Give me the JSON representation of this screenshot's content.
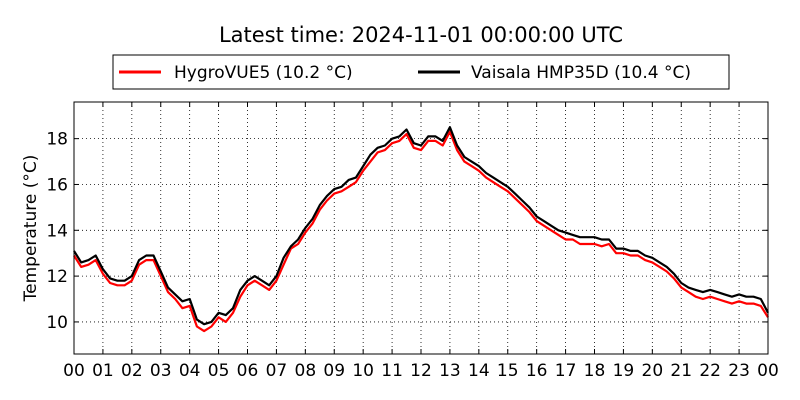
{
  "chart_data": {
    "type": "line",
    "title": "Latest time: 2024-11-01 00:00:00 UTC",
    "xlabel": "",
    "ylabel": "Temperature (°C)",
    "x_unit": "hour",
    "xlim": [
      0,
      24
    ],
    "ylim": [
      8.6,
      19.6
    ],
    "x_ticks": [
      0,
      1,
      2,
      3,
      4,
      5,
      6,
      7,
      8,
      9,
      10,
      11,
      12,
      13,
      14,
      15,
      16,
      17,
      18,
      19,
      20,
      21,
      22,
      23,
      24
    ],
    "x_tick_labels": [
      "00",
      "01",
      "02",
      "03",
      "04",
      "05",
      "06",
      "07",
      "08",
      "09",
      "10",
      "11",
      "12",
      "13",
      "14",
      "15",
      "16",
      "17",
      "18",
      "19",
      "20",
      "21",
      "22",
      "23",
      "00"
    ],
    "y_ticks": [
      10,
      12,
      14,
      16,
      18
    ],
    "y_tick_labels": [
      "10",
      "12",
      "14",
      "16",
      "18"
    ],
    "grid": true,
    "legend_position": "top",
    "x": [
      0,
      0.25,
      0.5,
      0.75,
      1,
      1.25,
      1.5,
      1.75,
      2,
      2.25,
      2.5,
      2.75,
      3,
      3.25,
      3.5,
      3.75,
      4,
      4.25,
      4.5,
      4.75,
      5,
      5.25,
      5.5,
      5.75,
      6,
      6.25,
      6.5,
      6.75,
      7,
      7.25,
      7.5,
      7.75,
      8,
      8.25,
      8.5,
      8.75,
      9,
      9.25,
      9.5,
      9.75,
      10,
      10.25,
      10.5,
      10.75,
      11,
      11.25,
      11.5,
      11.75,
      12,
      12.25,
      12.5,
      12.75,
      13,
      13.25,
      13.5,
      13.75,
      14,
      14.25,
      14.5,
      14.75,
      15,
      15.25,
      15.5,
      15.75,
      16,
      16.25,
      16.5,
      16.75,
      17,
      17.25,
      17.5,
      17.75,
      18,
      18.25,
      18.5,
      18.75,
      19,
      19.25,
      19.5,
      19.75,
      20,
      20.25,
      20.5,
      20.75,
      21,
      21.25,
      21.5,
      21.75,
      22,
      22.25,
      22.5,
      22.75,
      23,
      23.25,
      23.5,
      23.75,
      24
    ],
    "series": [
      {
        "name": "HygroVUE5 (10.2 °C)",
        "color": "#ff0000",
        "values": [
          12.9,
          12.4,
          12.5,
          12.7,
          12.1,
          11.7,
          11.6,
          11.6,
          11.8,
          12.5,
          12.7,
          12.7,
          12.0,
          11.3,
          11.0,
          10.6,
          10.7,
          9.8,
          9.6,
          9.8,
          10.2,
          10.0,
          10.4,
          11.1,
          11.6,
          11.8,
          11.6,
          11.4,
          11.8,
          12.5,
          13.2,
          13.4,
          13.9,
          14.3,
          14.9,
          15.3,
          15.6,
          15.7,
          15.9,
          16.1,
          16.6,
          17.0,
          17.4,
          17.5,
          17.8,
          17.9,
          18.2,
          17.6,
          17.5,
          17.9,
          17.9,
          17.7,
          18.3,
          17.5,
          17.0,
          16.8,
          16.6,
          16.3,
          16.1,
          15.9,
          15.7,
          15.4,
          15.1,
          14.8,
          14.4,
          14.2,
          14.0,
          13.8,
          13.6,
          13.6,
          13.4,
          13.4,
          13.4,
          13.3,
          13.4,
          13.0,
          13.0,
          12.9,
          12.9,
          12.7,
          12.6,
          12.4,
          12.2,
          11.9,
          11.5,
          11.3,
          11.1,
          11.0,
          11.1,
          11.0,
          10.9,
          10.8,
          10.9,
          10.8,
          10.8,
          10.7,
          10.2
        ]
      },
      {
        "name": "Vaisala HMP35D (10.4 °C)",
        "color": "#000000",
        "values": [
          13.1,
          12.6,
          12.7,
          12.9,
          12.3,
          11.9,
          11.8,
          11.8,
          12.0,
          12.7,
          12.9,
          12.9,
          12.2,
          11.5,
          11.2,
          10.9,
          11.0,
          10.1,
          9.9,
          10.0,
          10.4,
          10.3,
          10.6,
          11.4,
          11.8,
          12.0,
          11.8,
          11.6,
          12.0,
          12.8,
          13.3,
          13.6,
          14.1,
          14.5,
          15.1,
          15.5,
          15.8,
          15.9,
          16.2,
          16.3,
          16.8,
          17.3,
          17.6,
          17.7,
          18.0,
          18.1,
          18.4,
          17.8,
          17.7,
          18.1,
          18.1,
          17.9,
          18.5,
          17.7,
          17.2,
          17.0,
          16.8,
          16.5,
          16.3,
          16.1,
          15.9,
          15.6,
          15.3,
          15.0,
          14.6,
          14.4,
          14.2,
          14.0,
          13.9,
          13.8,
          13.7,
          13.7,
          13.7,
          13.6,
          13.6,
          13.2,
          13.2,
          13.1,
          13.1,
          12.9,
          12.8,
          12.6,
          12.4,
          12.1,
          11.7,
          11.5,
          11.4,
          11.3,
          11.4,
          11.3,
          11.2,
          11.1,
          11.2,
          11.1,
          11.1,
          11.0,
          10.4
        ]
      }
    ]
  }
}
